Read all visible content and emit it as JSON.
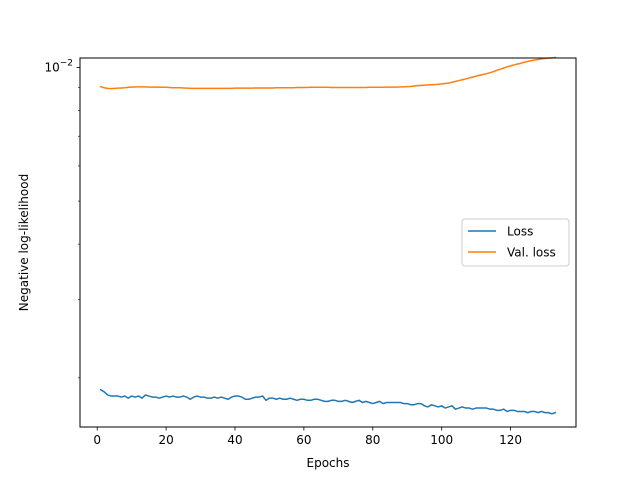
{
  "chart_data": {
    "type": "line",
    "title": "",
    "xlabel": "Epochs",
    "ylabel": "Negative log-likelihood",
    "xlim": [
      -5,
      139
    ],
    "ylim": [
      0.00155,
      0.0105
    ],
    "yscale": "log",
    "grid": false,
    "legend_position": "center-right",
    "x_ticks": [
      0,
      20,
      40,
      60,
      80,
      100,
      120
    ],
    "x_tick_labels": [
      "0",
      "20",
      "40",
      "60",
      "80",
      "100",
      "120"
    ],
    "y_ticks": [
      0.01
    ],
    "y_tick_labels": [
      {
        "base": "10",
        "exponent": "−2"
      }
    ],
    "series": [
      {
        "name": "Loss",
        "color": "#1f77b4",
        "x": [
          1,
          2,
          3,
          4,
          5,
          6,
          7,
          8,
          9,
          10,
          11,
          12,
          13,
          14,
          15,
          16,
          17,
          18,
          19,
          20,
          21,
          22,
          23,
          24,
          25,
          26,
          27,
          28,
          29,
          30,
          31,
          32,
          33,
          34,
          35,
          36,
          37,
          38,
          39,
          40,
          41,
          42,
          43,
          44,
          45,
          46,
          47,
          48,
          49,
          50,
          51,
          52,
          53,
          54,
          55,
          56,
          57,
          58,
          59,
          60,
          61,
          62,
          63,
          64,
          65,
          66,
          67,
          68,
          69,
          70,
          71,
          72,
          73,
          74,
          75,
          76,
          77,
          78,
          79,
          80,
          81,
          82,
          83,
          84,
          85,
          86,
          87,
          88,
          89,
          90,
          91,
          92,
          93,
          94,
          95,
          96,
          97,
          98,
          99,
          100,
          101,
          102,
          103,
          104,
          105,
          106,
          107,
          108,
          109,
          110,
          111,
          112,
          113,
          114,
          115,
          116,
          117,
          118,
          119,
          120,
          121,
          122,
          123,
          124,
          125,
          126,
          127,
          128,
          129,
          130,
          131,
          132,
          133
        ],
        "values": [
          0.00188,
          0.00186,
          0.00183,
          0.00182,
          0.00182,
          0.00182,
          0.00181,
          0.00182,
          0.0018,
          0.00182,
          0.00181,
          0.00182,
          0.0018,
          0.00183,
          0.00182,
          0.00181,
          0.00181,
          0.0018,
          0.00181,
          0.00182,
          0.00181,
          0.00182,
          0.00181,
          0.00181,
          0.00182,
          0.00181,
          0.00179,
          0.00181,
          0.00182,
          0.00181,
          0.00181,
          0.0018,
          0.0018,
          0.00181,
          0.0018,
          0.00181,
          0.0018,
          0.00179,
          0.00181,
          0.00182,
          0.00182,
          0.00181,
          0.00179,
          0.00179,
          0.0018,
          0.00181,
          0.00181,
          0.00182,
          0.00178,
          0.0018,
          0.0018,
          0.00179,
          0.0018,
          0.00179,
          0.00179,
          0.0018,
          0.00179,
          0.00178,
          0.00179,
          0.00179,
          0.00178,
          0.00178,
          0.00179,
          0.00179,
          0.00178,
          0.00177,
          0.00177,
          0.00178,
          0.00178,
          0.00177,
          0.00177,
          0.00178,
          0.00177,
          0.00176,
          0.00177,
          0.00178,
          0.00176,
          0.00177,
          0.00176,
          0.00175,
          0.00176,
          0.00177,
          0.00175,
          0.00176,
          0.00176,
          0.00176,
          0.00176,
          0.00176,
          0.00175,
          0.00175,
          0.00174,
          0.00174,
          0.00175,
          0.00175,
          0.00173,
          0.00172,
          0.00174,
          0.00173,
          0.00172,
          0.00173,
          0.00171,
          0.00172,
          0.00173,
          0.0017,
          0.00171,
          0.00172,
          0.00171,
          0.00171,
          0.0017,
          0.00171,
          0.00171,
          0.00171,
          0.00171,
          0.0017,
          0.0017,
          0.00169,
          0.00169,
          0.0017,
          0.00168,
          0.00169,
          0.00169,
          0.00168,
          0.00168,
          0.00168,
          0.00167,
          0.00168,
          0.00168,
          0.00167,
          0.00168,
          0.00167,
          0.00167,
          0.00166,
          0.00167
        ]
      },
      {
        "name": "Val. loss",
        "color": "#ff7f0e",
        "x": [
          1,
          2,
          3,
          4,
          5,
          6,
          7,
          8,
          9,
          10,
          11,
          12,
          13,
          14,
          15,
          16,
          17,
          18,
          19,
          20,
          21,
          22,
          23,
          24,
          25,
          26,
          27,
          28,
          29,
          30,
          31,
          32,
          33,
          34,
          35,
          36,
          37,
          38,
          39,
          40,
          41,
          42,
          43,
          44,
          45,
          46,
          47,
          48,
          49,
          50,
          51,
          52,
          53,
          54,
          55,
          56,
          57,
          58,
          59,
          60,
          61,
          62,
          63,
          64,
          65,
          66,
          67,
          68,
          69,
          70,
          71,
          72,
          73,
          74,
          75,
          76,
          77,
          78,
          79,
          80,
          81,
          82,
          83,
          84,
          85,
          86,
          87,
          88,
          89,
          90,
          91,
          92,
          93,
          94,
          95,
          96,
          97,
          98,
          99,
          100,
          101,
          102,
          103,
          104,
          105,
          106,
          107,
          108,
          109,
          110,
          111,
          112,
          113,
          114,
          115,
          116,
          117,
          118,
          119,
          120,
          121,
          122,
          123,
          124,
          125,
          126,
          127,
          128,
          129,
          130,
          131,
          132,
          133
        ],
        "values": [
          0.00905,
          0.009,
          0.00897,
          0.00896,
          0.00897,
          0.00898,
          0.00899,
          0.009,
          0.00902,
          0.00903,
          0.00904,
          0.00904,
          0.00904,
          0.00904,
          0.00903,
          0.00903,
          0.00903,
          0.00902,
          0.00902,
          0.00902,
          0.00901,
          0.009,
          0.009,
          0.009,
          0.00899,
          0.00898,
          0.00897,
          0.00897,
          0.00897,
          0.00897,
          0.00897,
          0.00897,
          0.00897,
          0.00897,
          0.00897,
          0.00897,
          0.00897,
          0.00897,
          0.00897,
          0.00898,
          0.00898,
          0.00898,
          0.00898,
          0.00898,
          0.00898,
          0.00899,
          0.00899,
          0.00899,
          0.00899,
          0.00899,
          0.00899,
          0.009,
          0.009,
          0.009,
          0.009,
          0.009,
          0.009,
          0.00901,
          0.00901,
          0.00901,
          0.00901,
          0.00902,
          0.00902,
          0.00902,
          0.00902,
          0.00902,
          0.00902,
          0.00901,
          0.00901,
          0.00901,
          0.00901,
          0.00901,
          0.00901,
          0.00901,
          0.00901,
          0.00901,
          0.00901,
          0.00901,
          0.00902,
          0.00902,
          0.00902,
          0.00902,
          0.00902,
          0.00903,
          0.00903,
          0.00903,
          0.00903,
          0.00904,
          0.00904,
          0.00905,
          0.00906,
          0.00908,
          0.0091,
          0.00911,
          0.00912,
          0.00913,
          0.00914,
          0.00915,
          0.00916,
          0.00918,
          0.0092,
          0.00922,
          0.00926,
          0.0093,
          0.00934,
          0.00938,
          0.00942,
          0.00947,
          0.00951,
          0.00956,
          0.0096,
          0.00964,
          0.00968,
          0.00973,
          0.00978,
          0.00985,
          0.00991,
          0.00997,
          0.01003,
          0.01008,
          0.01013,
          0.01018,
          0.01022,
          0.01027,
          0.01032,
          0.01036,
          0.01039,
          0.01042,
          0.01045,
          0.01047,
          0.01049,
          0.01051,
          0.01053
        ]
      }
    ]
  }
}
